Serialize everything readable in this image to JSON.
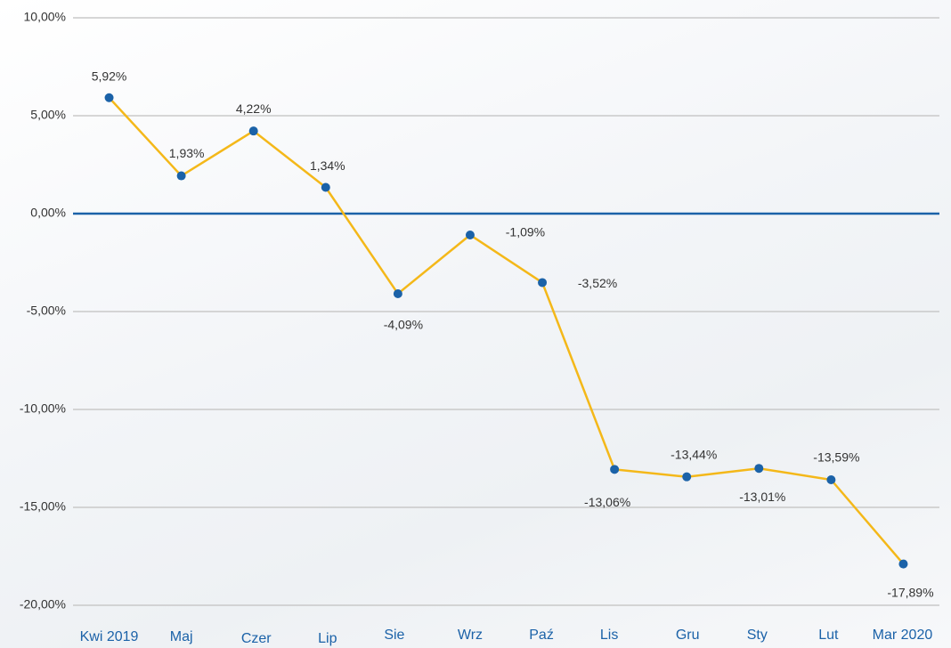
{
  "chart_data": {
    "type": "line",
    "categories": [
      "Kwi 2019",
      "Maj",
      "Czer",
      "Lip",
      "Sie",
      "Wrz",
      "Paź",
      "Lis",
      "Gru",
      "Sty",
      "Lut",
      "Mar 2020"
    ],
    "values": [
      5.92,
      1.93,
      4.22,
      1.34,
      -4.09,
      -1.09,
      -3.52,
      -13.06,
      -13.44,
      -13.01,
      -13.59,
      -17.89
    ],
    "value_labels": [
      "5,92%",
      "1,93%",
      "4,22%",
      "1,34%",
      "-4,09%",
      "-1,09%",
      "-3,52%",
      "-13,06%",
      "-13,44%",
      "-13,01%",
      "-13,59%",
      "-17,89%"
    ],
    "color": "#f4b819",
    "marker_color": "#1b62a8",
    "zero_line_color": "#1b62a8",
    "ylim": [
      -20,
      10
    ],
    "yticks": [
      {
        "value": -20,
        "label": "-20,00%"
      },
      {
        "value": -15,
        "label": "-15,00%"
      },
      {
        "value": -10,
        "label": "-10,00%"
      },
      {
        "value": -5,
        "label": "-5,00%"
      },
      {
        "value": 0,
        "label": "0,00%"
      },
      {
        "value": 5,
        "label": "5,00%"
      },
      {
        "value": 10,
        "label": "10,00%"
      }
    ],
    "grid": true
  }
}
